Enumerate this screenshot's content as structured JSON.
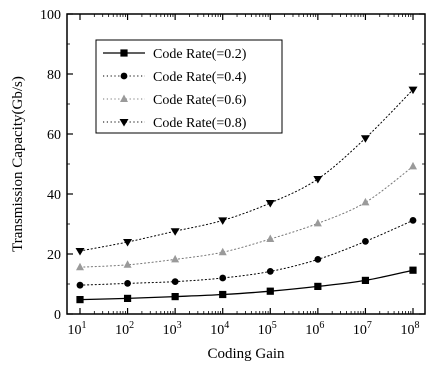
{
  "chart_data": {
    "type": "line",
    "title": "",
    "xlabel": "Coding Gain",
    "ylabel": "Transmission Capacity(Gb/s)",
    "x_scale": "log",
    "x_base": "10",
    "x": [
      10,
      100,
      1000,
      10000,
      100000,
      1000000,
      10000000,
      100000000
    ],
    "x_tick_exponents": [
      "1",
      "2",
      "3",
      "4",
      "5",
      "6",
      "7",
      "8"
    ],
    "ylim": [
      0,
      100
    ],
    "y_ticks": [
      0,
      20,
      40,
      60,
      80,
      100
    ],
    "grid": false,
    "legend_position": "top-left",
    "series": [
      {
        "name": "Code Rate(=0.2)",
        "marker": "square",
        "line": "solid",
        "values": [
          4.8,
          5.2,
          5.8,
          6.5,
          7.6,
          9.2,
          11.2,
          14.6
        ]
      },
      {
        "name": "Code Rate(=0.4)",
        "marker": "circle",
        "line": "dotted",
        "values": [
          9.6,
          10.2,
          10.8,
          12.0,
          14.2,
          18.2,
          24.2,
          31.2
        ]
      },
      {
        "name": "Code Rate(=0.6)",
        "marker": "triangle-up",
        "line": "dotted",
        "values": [
          15.6,
          16.4,
          18.2,
          20.6,
          25.0,
          30.2,
          37.2,
          49.2
        ]
      },
      {
        "name": "Code Rate(=0.8)",
        "marker": "triangle-down",
        "line": "dotted",
        "values": [
          21.0,
          24.0,
          27.6,
          31.2,
          37.0,
          45.0,
          58.6,
          74.8
        ]
      }
    ]
  }
}
